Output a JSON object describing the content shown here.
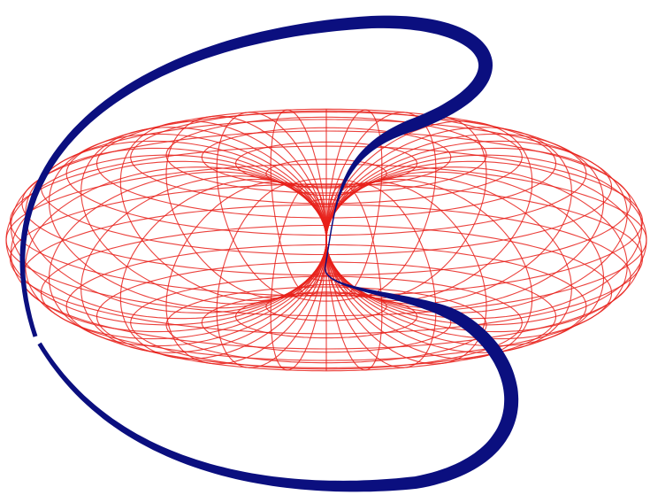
{
  "figure": {
    "kind": "horn torus wireframe with a spiral band",
    "meridian_count": 36,
    "latitude_count": 28,
    "colors": {
      "background": "#ffffff",
      "mesh": "#e8201a",
      "band": "#0b0f7f"
    }
  }
}
